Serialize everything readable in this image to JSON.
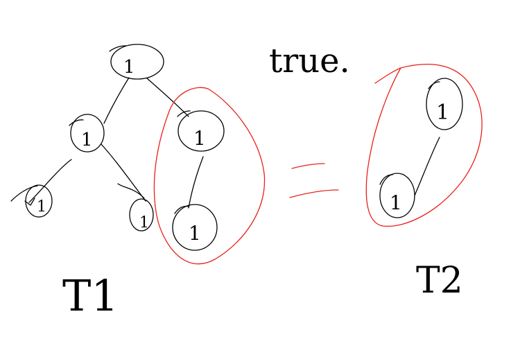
{
  "diagram": {
    "annotation": "true.",
    "equals_sign": "=",
    "left_tree": {
      "label": "T1",
      "nodes": [
        {
          "id": "root",
          "value": "1"
        },
        {
          "id": "left",
          "value": "1"
        },
        {
          "id": "right",
          "value": "1"
        },
        {
          "id": "left-left",
          "value": "1"
        },
        {
          "id": "left-right",
          "value": "1"
        },
        {
          "id": "right-left",
          "value": "1"
        }
      ],
      "edges": [
        [
          "root",
          "left"
        ],
        [
          "root",
          "right"
        ],
        [
          "left",
          "left-left"
        ],
        [
          "left",
          "left-right"
        ],
        [
          "right",
          "right-left"
        ]
      ],
      "highlighted_subtree_root": "right"
    },
    "right_tree": {
      "label": "T2",
      "nodes": [
        {
          "id": "root",
          "value": "1"
        },
        {
          "id": "left",
          "value": "1"
        }
      ],
      "edges": [
        [
          "root",
          "left"
        ]
      ]
    },
    "colors": {
      "ink": "#000000",
      "highlight": "#e8201a",
      "background": "#ffffff"
    }
  }
}
